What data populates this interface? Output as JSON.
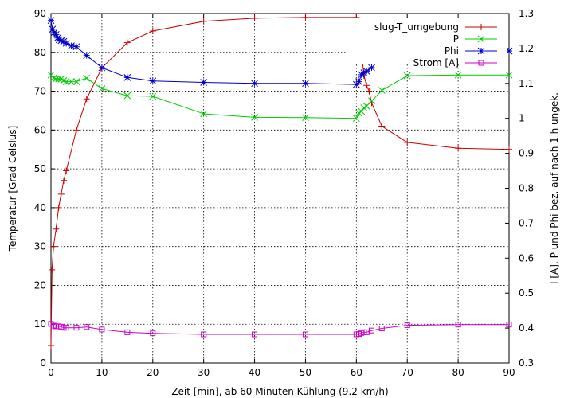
{
  "chart_data": {
    "type": "line",
    "xlabel": "Zeit [min], ab 60 Minuten Kühlung (9.2 km/h)",
    "ylabel": "Temperatur [Grad Celsius]",
    "y2label": "I [A], P und Phi bez. auf nach 1 h ungek.",
    "xlim": [
      0,
      90
    ],
    "ylim": [
      0,
      90
    ],
    "y2lim": [
      0.3,
      1.3
    ],
    "x_ticks": [
      "0",
      "10",
      "20",
      "30",
      "40",
      "50",
      "60",
      "70",
      "80",
      "90"
    ],
    "y_ticks": [
      "0",
      "10",
      "20",
      "30",
      "40",
      "50",
      "60",
      "70",
      "80",
      "90"
    ],
    "y2_ticks": [
      "0.3",
      "0.4",
      "0.5",
      "0.6",
      "0.7",
      "0.8",
      "0.9",
      "1",
      "1.1",
      "1.2",
      "1.3"
    ],
    "grid": true,
    "legend_position": "top-right",
    "series": [
      {
        "name": "slug-T_umgebung",
        "axis": "left",
        "color": "#cc0000",
        "marker": "plus",
        "x": [
          0,
          0.2,
          0.5,
          1,
          1.5,
          2,
          2.5,
          3,
          5,
          7,
          10,
          15,
          20,
          30,
          40,
          50,
          60,
          60.5,
          61,
          61.5,
          62,
          62.5,
          63,
          65,
          70,
          80,
          90
        ],
        "y": [
          4.5,
          24,
          30,
          34.5,
          40,
          43.5,
          47,
          49.5,
          60,
          68,
          76,
          82.5,
          85.5,
          88,
          88.8,
          89,
          89,
          86,
          80,
          74,
          71.5,
          70,
          67,
          61,
          56.8,
          55.3,
          55
        ]
      },
      {
        "name": "P",
        "axis": "right",
        "color": "#00cc00",
        "marker": "cross",
        "x": [
          0,
          0.5,
          1,
          1.5,
          2,
          2.5,
          3,
          4,
          5,
          7,
          10,
          15,
          20,
          30,
          40,
          50,
          60,
          60.5,
          61,
          61.5,
          62,
          63,
          65,
          70,
          80,
          90
        ],
        "y": [
          1.124,
          1.115,
          1.113,
          1.113,
          1.113,
          1.108,
          1.105,
          1.105,
          1.105,
          1.115,
          1.085,
          1.065,
          1.063,
          1.013,
          1.003,
          1.002,
          1.0,
          1.015,
          1.02,
          1.03,
          1.035,
          1.05,
          1.08,
          1.122,
          1.124,
          1.124
        ]
      },
      {
        "name": "Phi",
        "axis": "right",
        "color": "#0000cc",
        "marker": "star",
        "x": [
          0,
          0.3,
          0.6,
          1,
          1.3,
          1.6,
          2,
          2.5,
          3,
          4,
          5,
          7,
          10,
          15,
          20,
          30,
          40,
          50,
          60,
          60.5,
          61,
          61.5,
          62,
          63,
          65,
          70,
          80,
          90
        ],
        "y": [
          1.28,
          1.255,
          1.245,
          1.24,
          1.23,
          1.225,
          1.2225,
          1.22,
          1.215,
          1.2075,
          1.205,
          1.18,
          1.145,
          1.117,
          1.107,
          1.103,
          1.1,
          1.1,
          1.097,
          1.105,
          1.125,
          1.13,
          1.135,
          1.145,
          1.175,
          1.19,
          1.193,
          1.193
        ]
      },
      {
        "name": "Strom [A]",
        "axis": "right",
        "color": "#cc00cc",
        "marker": "square",
        "x": [
          0,
          0.5,
          1,
          1.5,
          2,
          2.5,
          3,
          5,
          7,
          10,
          15,
          20,
          30,
          40,
          50,
          60,
          60.5,
          61,
          61.5,
          62,
          63,
          65,
          70,
          80,
          90
        ],
        "y": [
          0.412,
          0.407,
          0.405,
          0.405,
          0.404,
          0.401,
          0.401,
          0.401,
          0.403,
          0.396,
          0.388,
          0.385,
          0.382,
          0.382,
          0.382,
          0.382,
          0.383,
          0.386,
          0.388,
          0.388,
          0.393,
          0.399,
          0.408,
          0.41,
          0.41
        ]
      }
    ]
  }
}
